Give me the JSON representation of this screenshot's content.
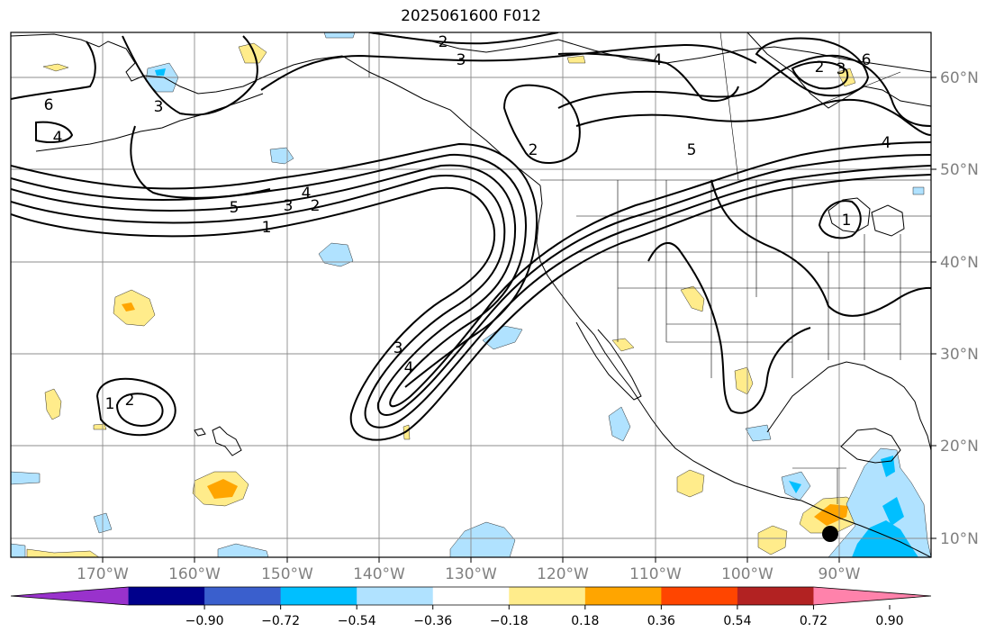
{
  "title": "2025061600 F012",
  "latitude_labels": [
    "60°N",
    "50°N",
    "40°N",
    "30°N",
    "20°N",
    "10°N"
  ],
  "longitude_labels": [
    "170°W",
    "160°W",
    "150°W",
    "140°W",
    "130°W",
    "120°W",
    "110°W",
    "100°W",
    "90°W"
  ],
  "colorbar": {
    "labels": [
      "−0.90",
      "−0.72",
      "−0.54",
      "−0.36",
      "−0.18",
      "0.18",
      "0.36",
      "0.54",
      "0.72",
      "0.90"
    ],
    "colors": [
      "#9932cc",
      "#00008b",
      "#3a5fcd",
      "#00bfff",
      "#b0e2ff",
      "#ffffff",
      "#ffec8b",
      "#ffa500",
      "#ff4500",
      "#b22222",
      "#ff82ab"
    ],
    "extend": "both"
  },
  "contour_labels": [
    "1",
    "2",
    "3",
    "4",
    "5",
    "6"
  ],
  "colors": {
    "grid": "#8c8c8c",
    "coast": "#000000",
    "contour": "#000000"
  }
}
